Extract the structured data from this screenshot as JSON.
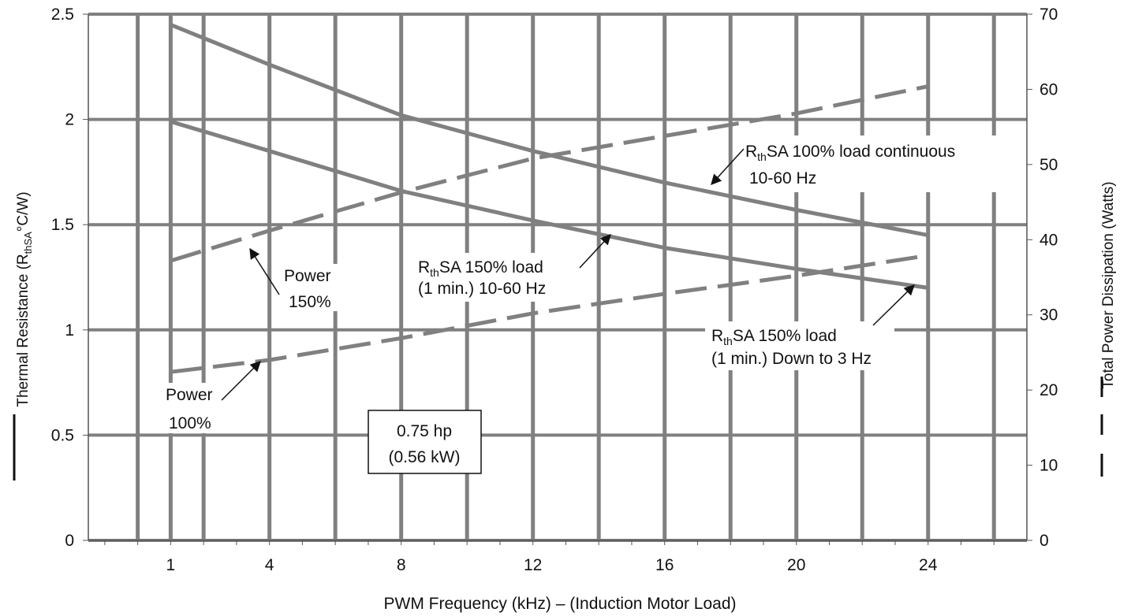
{
  "chart_data": {
    "type": "line",
    "xlabel": "PWM Frequency (kHz) – (Induction Motor Load)",
    "ylabel": {
      "main": "Thermal Resistance (R",
      "sub": "thSA",
      "tail": "°C/W)"
    },
    "y2label": "Total Power Dissipation (Watts)",
    "xlim": [
      -1.5,
      27
    ],
    "ylim": [
      0,
      2.5
    ],
    "y2lim": [
      0,
      70
    ],
    "x_ticks": [
      1,
      4,
      8,
      12,
      16,
      20,
      24
    ],
    "x_tick_labels": [
      "1",
      "4",
      "8",
      "12",
      "16",
      "20",
      "24"
    ],
    "y_ticks": [
      0,
      0.5,
      1,
      1.5,
      2,
      2.5
    ],
    "y_tick_labels": [
      "0",
      "0.5",
      "1",
      "1.5",
      "2",
      "2.5"
    ],
    "y2_ticks": [
      0,
      10,
      20,
      30,
      40,
      50,
      60,
      70
    ],
    "y2_tick_labels": [
      "0",
      "10",
      "20",
      "30",
      "40",
      "50",
      "60",
      "70"
    ],
    "grid": true,
    "series": [
      {
        "axis": "left",
        "style": "solid",
        "x": [
          1,
          4,
          8,
          12,
          16,
          20,
          24
        ],
        "y": [
          2.45,
          2.26,
          2.02,
          1.85,
          1.7,
          1.57,
          1.45
        ]
      },
      {
        "axis": "left",
        "style": "solid",
        "x": [
          1,
          4,
          8,
          12,
          16,
          20,
          24
        ],
        "y": [
          1.99,
          1.85,
          1.66,
          1.52,
          1.39,
          1.29,
          1.2
        ]
      },
      {
        "axis": "right",
        "style": "dashed",
        "x": [
          1,
          4,
          8,
          12,
          16,
          20,
          24
        ],
        "y": [
          37.2,
          41.2,
          46.3,
          50.8,
          53.8,
          56.8,
          60.4
        ]
      },
      {
        "axis": "right",
        "style": "dashed",
        "x": [
          1,
          4,
          8,
          12,
          16,
          20,
          24
        ],
        "y": [
          22.4,
          24.0,
          26.9,
          30.2,
          32.8,
          35.2,
          37.9
        ]
      }
    ],
    "annotations": {
      "r100_line1": {
        "pre": "R",
        "sub": "th",
        "post": "SA 100% load continuous"
      },
      "r100_line2": "10-60 Hz",
      "r150_line1": {
        "pre": "R",
        "sub": "th",
        "post": "SA 150% load"
      },
      "r150_line2": "(1 min.) 10-60 Hz",
      "r150d_line1": {
        "pre": "R",
        "sub": "th",
        "post": "SA 150% load"
      },
      "r150d_line2": "(1 min.) Down to 3 Hz",
      "p150_line1": "Power",
      "p150_line2": "150%",
      "p100_line1": "Power",
      "p100_line2": "100%",
      "box_line1": "0.75 hp",
      "box_line2": "(0.56 kW)"
    },
    "colors": {
      "grid": "#808080",
      "line": "#808080",
      "axis": "#555555",
      "text": "#111111"
    }
  }
}
